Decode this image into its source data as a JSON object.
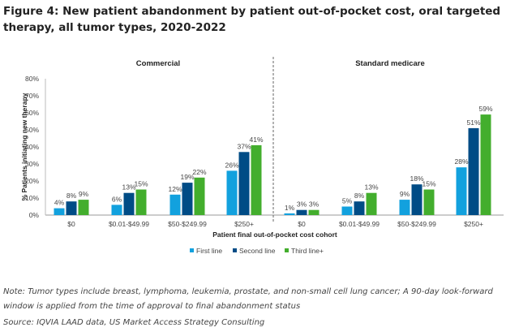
{
  "title": "Figure 4: New patient abandonment by patient out-of-pocket cost, oral targeted therapy, all tumor types, 2020-2022",
  "chart_data": {
    "type": "bar",
    "ylabel": "% Patients initiating new therapy",
    "xlabel": "Patient final out-of-pocket cost cohort",
    "ylim": [
      0,
      80
    ],
    "yticks": [
      "0%",
      "10%",
      "20%",
      "30%",
      "40%",
      "50%",
      "60%",
      "70%",
      "80%"
    ],
    "legend_position": "bottom",
    "grid": false,
    "colors": [
      "#12a1de",
      "#004c86",
      "#43ae2d"
    ],
    "panels": [
      {
        "name": "Commercial",
        "categories": [
          "$0",
          "$0.01-$49.99",
          "$50-$249.99",
          "$250+"
        ],
        "series": [
          {
            "name": "First line",
            "values": [
              4,
              6,
              12,
              26
            ]
          },
          {
            "name": "Second line",
            "values": [
              8,
              13,
              19,
              37
            ]
          },
          {
            "name": "Third line+",
            "values": [
              9,
              15,
              22,
              41
            ]
          }
        ]
      },
      {
        "name": "Standard medicare",
        "categories": [
          "$0",
          "$0.01-$49.99",
          "$50-$249.99",
          "$250+"
        ],
        "series": [
          {
            "name": "First line",
            "values": [
              1,
              5,
              9,
              28
            ]
          },
          {
            "name": "Second line",
            "values": [
              3,
              8,
              18,
              51
            ]
          },
          {
            "name": "Third line+",
            "values": [
              3,
              13,
              15,
              59
            ]
          }
        ]
      }
    ]
  },
  "notes": {
    "note": "Note: Tumor types include breast, lymphoma, leukemia, prostate, and non-small cell lung cancer; A 90-day look-forward window is applied from the time of approval to final abandonment status",
    "source": "Source: IQVIA LAAD data, US Market Access Strategy Consulting"
  }
}
